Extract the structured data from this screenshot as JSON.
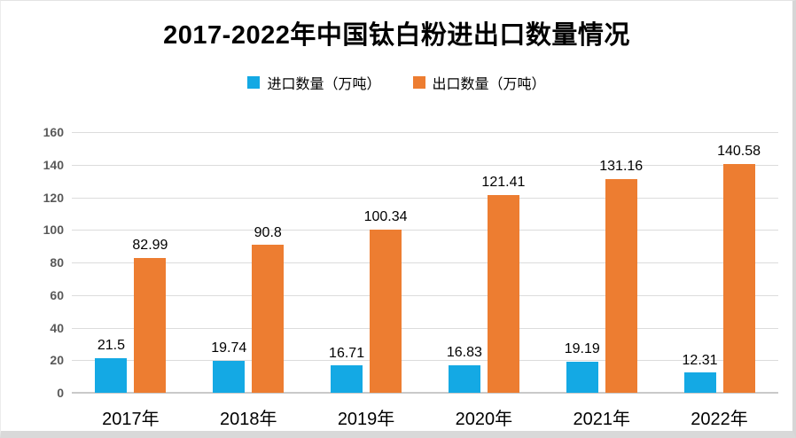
{
  "chart_data": {
    "type": "bar",
    "title": "2017-2022年中国钛白粉进出口数量情况",
    "categories": [
      "2017年",
      "2018年",
      "2019年",
      "2020年",
      "2021年",
      "2022年"
    ],
    "series": [
      {
        "name": "进口数量（万吨）",
        "color": "#14A9E4",
        "values": [
          21.5,
          19.74,
          16.71,
          16.83,
          19.19,
          12.31
        ],
        "labels": [
          "21.5",
          "19.74",
          "16.71",
          "16.83",
          "19.19",
          "12.31"
        ]
      },
      {
        "name": "出口数量（万吨）",
        "color": "#ED7D31",
        "values": [
          82.99,
          90.8,
          100.34,
          121.41,
          131.16,
          140.58
        ],
        "labels": [
          "82.99",
          "90.8",
          "100.34",
          "121.41",
          "131.16",
          "140.58"
        ]
      }
    ],
    "xlabel": "",
    "ylabel": "",
    "ylim": [
      0,
      160
    ],
    "y_ticks": [
      0,
      20,
      40,
      60,
      80,
      100,
      120,
      140,
      160
    ],
    "grid": true,
    "legend_position": "top"
  },
  "colors": {
    "import_series": "#14A9E4",
    "export_series": "#ED7D31",
    "gridline": "#DCDCDC",
    "axis_baseline": "#C9C9C9",
    "axis_tick_text": "#595959",
    "data_label_text": "#000000",
    "card_border": "#D9D9D9"
  }
}
